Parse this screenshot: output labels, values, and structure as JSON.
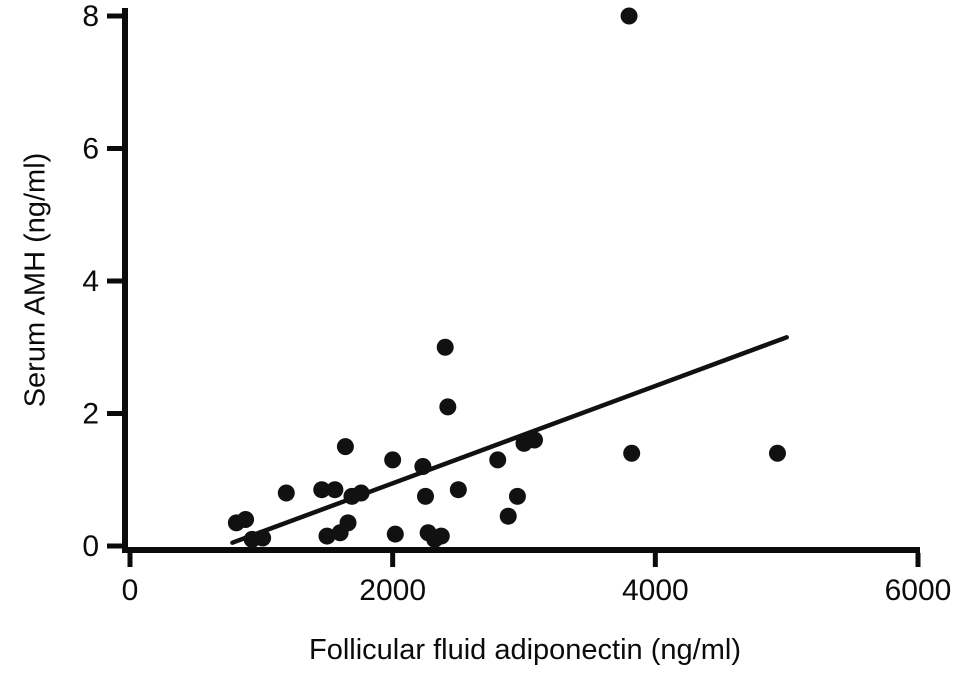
{
  "chart_data": {
    "type": "scatter",
    "title": "",
    "xlabel": "Follicular fluid adiponectin (ng/ml)",
    "ylabel": "Serum AMH (ng/ml)",
    "xlim": [
      0,
      6000
    ],
    "ylim": [
      0,
      8
    ],
    "x_ticks": [
      0,
      2000,
      4000,
      6000
    ],
    "y_ticks": [
      0,
      2,
      4,
      6,
      8
    ],
    "grid": false,
    "legend": false,
    "axis_color": "#0b0b0b",
    "marker_color": "#111111",
    "marker_radius": 8.5,
    "points": [
      [
        810,
        0.35
      ],
      [
        880,
        0.4
      ],
      [
        930,
        0.1
      ],
      [
        1010,
        0.12
      ],
      [
        1190,
        0.8
      ],
      [
        1460,
        0.85
      ],
      [
        1560,
        0.85
      ],
      [
        1500,
        0.15
      ],
      [
        1600,
        0.2
      ],
      [
        1640,
        1.5
      ],
      [
        1660,
        0.35
      ],
      [
        1690,
        0.75
      ],
      [
        1760,
        0.8
      ],
      [
        2000,
        1.3
      ],
      [
        2020,
        0.18
      ],
      [
        2230,
        1.2
      ],
      [
        2250,
        0.75
      ],
      [
        2270,
        0.2
      ],
      [
        2320,
        0.1
      ],
      [
        2370,
        0.15
      ],
      [
        2400,
        3.0
      ],
      [
        2420,
        2.1
      ],
      [
        2500,
        0.85
      ],
      [
        2800,
        1.3
      ],
      [
        2880,
        0.45
      ],
      [
        2950,
        0.75
      ],
      [
        3000,
        1.55
      ],
      [
        3080,
        1.6
      ],
      [
        3800,
        8.0
      ],
      [
        3820,
        1.4
      ],
      [
        4930,
        1.4
      ]
    ],
    "trend_line": {
      "x1": 780,
      "y1": 0.05,
      "x2": 5000,
      "y2": 3.15
    }
  }
}
